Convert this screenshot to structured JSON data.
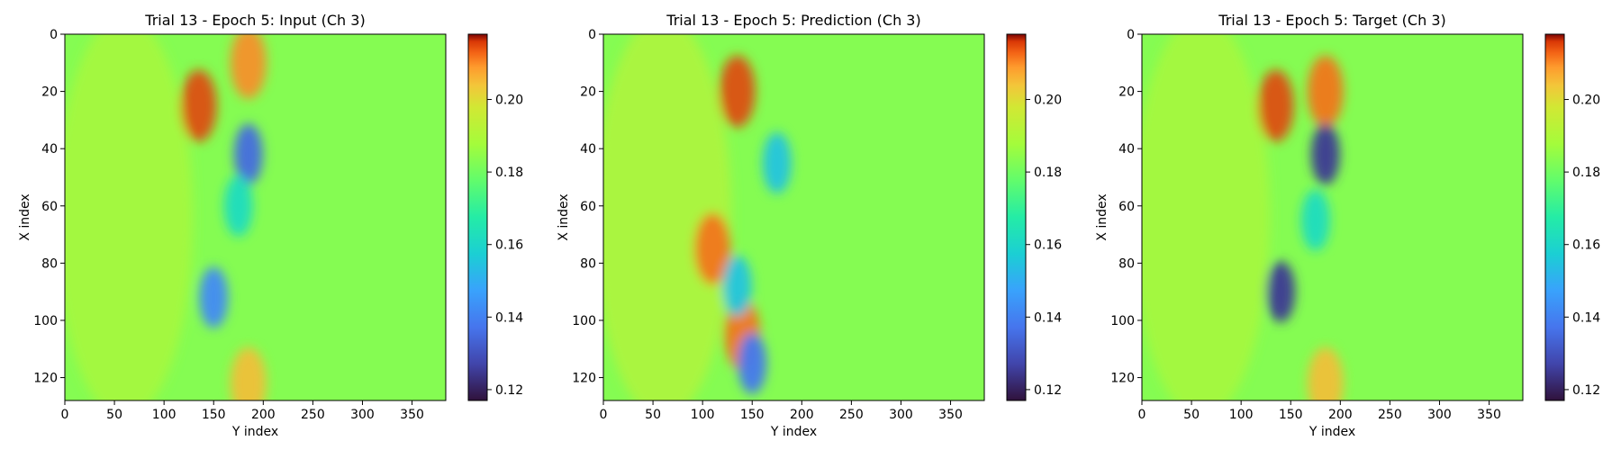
{
  "chart_data": [
    {
      "type": "heatmap",
      "title": "Trial 13 - Epoch 5: Input (Ch 3)",
      "xlabel": "Y index",
      "ylabel": "X index",
      "xlim": [
        0,
        384
      ],
      "ylim": [
        128,
        0
      ],
      "xticks": [
        0,
        50,
        100,
        150,
        200,
        250,
        300,
        350
      ],
      "yticks": [
        0,
        20,
        40,
        60,
        80,
        100,
        120
      ],
      "colorbar": {
        "range": [
          0.117,
          0.218
        ],
        "ticks": [
          0.12,
          0.14,
          0.16,
          0.18,
          0.2
        ],
        "tick_labels": [
          "0.12",
          "0.14",
          "0.16",
          "0.18",
          "0.20"
        ],
        "colormap": "turbo"
      },
      "field_description_values": {
        "background": 0.183,
        "left_region": 0.19,
        "low_features": [
          {
            "x": 185,
            "y": 42,
            "value": 0.135
          },
          {
            "x": 150,
            "y": 92,
            "value": 0.142
          },
          {
            "x": 175,
            "y": 60,
            "value": 0.162
          }
        ],
        "high_features": [
          {
            "x": 135,
            "y": 25,
            "value": 0.215
          },
          {
            "x": 185,
            "y": 10,
            "value": 0.21
          },
          {
            "x": 185,
            "y": 122,
            "value": 0.205
          }
        ]
      }
    },
    {
      "type": "heatmap",
      "title": "Trial 13 - Epoch 5: Prediction (Ch 3)",
      "xlabel": "Y index",
      "ylabel": "X index",
      "xlim": [
        0,
        384
      ],
      "ylim": [
        128,
        0
      ],
      "xticks": [
        0,
        50,
        100,
        150,
        200,
        250,
        300,
        350
      ],
      "yticks": [
        0,
        20,
        40,
        60,
        80,
        100,
        120
      ],
      "colorbar": {
        "range": [
          0.117,
          0.218
        ],
        "ticks": [
          0.12,
          0.14,
          0.16,
          0.18,
          0.2
        ],
        "tick_labels": [
          "0.12",
          "0.14",
          "0.16",
          "0.18",
          "0.20"
        ],
        "colormap": "turbo"
      },
      "field_description_values": {
        "background": 0.183,
        "left_region": 0.192,
        "low_features": [
          {
            "x": 175,
            "y": 45,
            "value": 0.155
          },
          {
            "x": 150,
            "y": 115,
            "value": 0.138
          },
          {
            "x": 135,
            "y": 88,
            "value": 0.155
          }
        ],
        "high_features": [
          {
            "x": 135,
            "y": 20,
            "value": 0.215
          },
          {
            "x": 110,
            "y": 75,
            "value": 0.212
          },
          {
            "x": 140,
            "y": 105,
            "value": 0.212
          }
        ]
      }
    },
    {
      "type": "heatmap",
      "title": "Trial 13 - Epoch 5: Target (Ch 3)",
      "xlabel": "Y index",
      "ylabel": "X index",
      "xlim": [
        0,
        384
      ],
      "ylim": [
        128,
        0
      ],
      "xticks": [
        0,
        50,
        100,
        150,
        200,
        250,
        300,
        350
      ],
      "yticks": [
        0,
        20,
        40,
        60,
        80,
        100,
        120
      ],
      "colorbar": {
        "range": [
          0.117,
          0.218
        ],
        "ticks": [
          0.12,
          0.14,
          0.16,
          0.18,
          0.2
        ],
        "tick_labels": [
          "0.12",
          "0.14",
          "0.16",
          "0.18",
          "0.20"
        ],
        "colormap": "turbo"
      },
      "field_description_values": {
        "background": 0.183,
        "left_region": 0.19,
        "low_features": [
          {
            "x": 185,
            "y": 42,
            "value": 0.125
          },
          {
            "x": 140,
            "y": 90,
            "value": 0.125
          },
          {
            "x": 175,
            "y": 65,
            "value": 0.162
          }
        ],
        "high_features": [
          {
            "x": 135,
            "y": 25,
            "value": 0.215
          },
          {
            "x": 185,
            "y": 20,
            "value": 0.212
          },
          {
            "x": 185,
            "y": 122,
            "value": 0.205
          }
        ]
      }
    }
  ]
}
